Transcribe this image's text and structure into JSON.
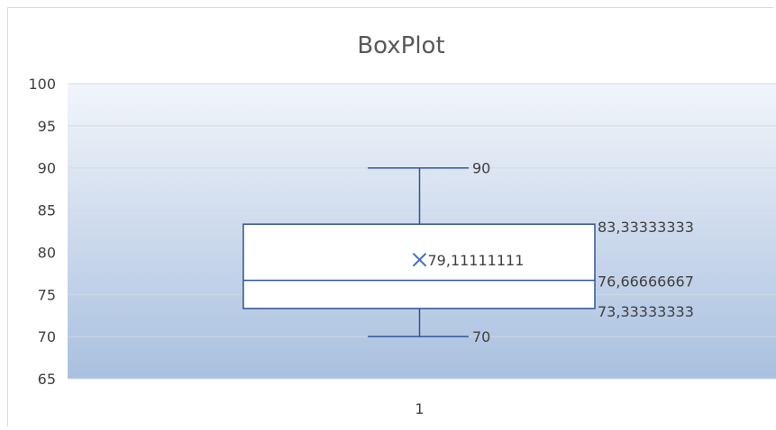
{
  "chart_data": {
    "type": "box",
    "title": "BoxPlot",
    "categories": [
      "1"
    ],
    "ylim": [
      65,
      100
    ],
    "y_ticks": [
      "65",
      "70",
      "75",
      "80",
      "85",
      "90",
      "95",
      "100"
    ],
    "grid": true,
    "box": {
      "min": 70,
      "q1": 73.33333333,
      "median": 76.66666667,
      "q3": 83.33333333,
      "max": 90,
      "mean": 79.11111111
    },
    "labels": {
      "min": "70",
      "q1": "73,33333333",
      "median": "76,66666667",
      "q3": "83,33333333",
      "max": "90",
      "mean": "79,11111111"
    },
    "colors": {
      "box_stroke": "#2f5597",
      "mean_marker": "#4472c4",
      "plot_top": "#f2f5fb",
      "plot_bottom": "#a9c0df"
    }
  }
}
